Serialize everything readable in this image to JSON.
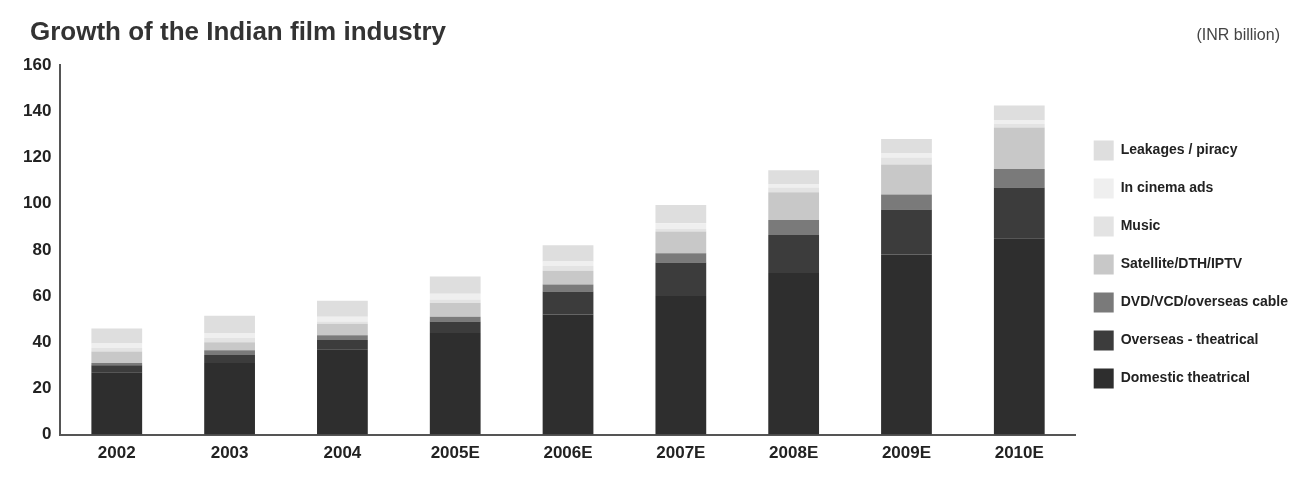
{
  "chart_data": {
    "type": "bar",
    "title": "Growth of the Indian film industry",
    "annotations": [
      "(INR billion)"
    ],
    "categories": [
      "2002",
      "2003",
      "2004",
      "2005E",
      "2006E",
      "2007E",
      "2008E",
      "2009E",
      "2010E"
    ],
    "stacked": true,
    "legend": "right",
    "grid": false,
    "ylim": [
      0,
      160
    ],
    "yticks": [
      0,
      20,
      40,
      60,
      80,
      100,
      120,
      140,
      160
    ],
    "series": [
      {
        "name": "Domestic theatrical",
        "color": "#2e2e2e",
        "values": [
          27,
          31,
          37,
          44,
          52,
          60,
          70,
          78,
          85
        ]
      },
      {
        "name": "Overseas - theatrical",
        "color": "#3c3c3c",
        "values": [
          3,
          3.5,
          4,
          5,
          10,
          14.5,
          16.5,
          19.5,
          22
        ]
      },
      {
        "name": "DVD/VCD/overseas cable",
        "color": "#7a7a7a",
        "values": [
          1,
          2,
          2,
          2,
          3,
          4,
          6.5,
          6.5,
          8
        ]
      },
      {
        "name": "Satellite/DTH/IPTV",
        "color": "#c8c8c8",
        "values": [
          5,
          3.5,
          5,
          6,
          6,
          9.5,
          12,
          13,
          18
        ]
      },
      {
        "name": "Music",
        "color": "#e3e3e3",
        "values": [
          1.5,
          2,
          1,
          1.5,
          2,
          1,
          2,
          3,
          1.5
        ]
      },
      {
        "name": "In cinema ads",
        "color": "#efefef",
        "values": [
          2,
          2,
          2,
          2.5,
          2,
          2.5,
          1.5,
          2,
          1.5
        ]
      },
      {
        "name": "Leakages / piracy",
        "color": "#dedede",
        "values": [
          6.5,
          7.5,
          7,
          7.5,
          7,
          8,
          6,
          6,
          6.5
        ]
      }
    ]
  }
}
